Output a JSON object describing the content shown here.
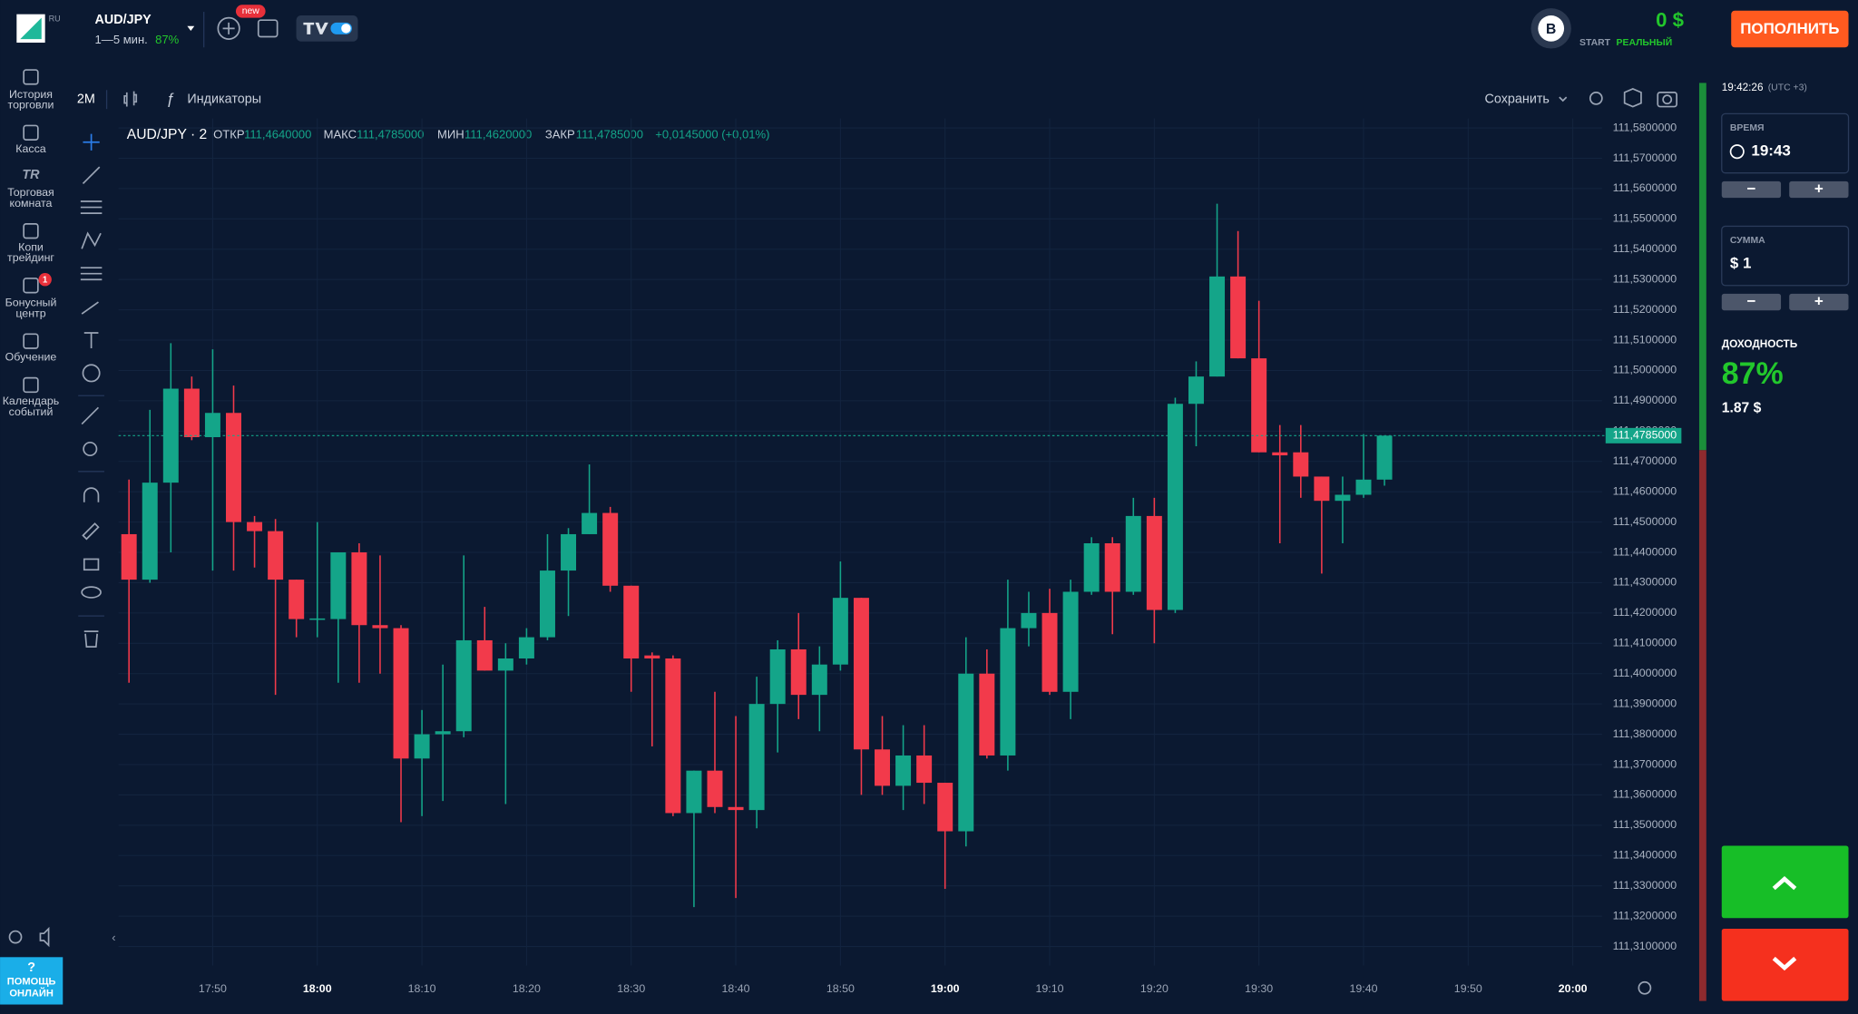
{
  "topbar": {
    "brand": "RU",
    "pair": "AUD/JPY",
    "expiry": "1—5 мин.",
    "payout": "87%",
    "new_badge": "new",
    "avatar": "B",
    "balance": "0 $",
    "account_type": "START",
    "account_mode": "РЕАЛЬНЫЙ",
    "deposit_button": "ПОПОЛНИТЬ"
  },
  "sidebar": [
    {
      "label": [
        "История",
        "торговли"
      ]
    },
    {
      "label": [
        "Касса"
      ]
    },
    {
      "label": [
        "Торговая",
        "комната"
      ],
      "icon": "TR"
    },
    {
      "label": [
        "Копи",
        "трейдинг"
      ]
    },
    {
      "label": [
        "Бонусный",
        "центр"
      ],
      "badge": "1"
    },
    {
      "label": [
        "Обучение"
      ]
    },
    {
      "label": [
        "Календарь",
        "событий"
      ]
    }
  ],
  "help": {
    "icon": "?",
    "label": [
      "ПОМОЩЬ",
      "ОНЛАЙН"
    ]
  },
  "toolbar": {
    "timeframe": "2M",
    "indicators": "Индикаторы",
    "save": "Сохранить"
  },
  "chart_header": {
    "symbol": "AUD/JPY · 2",
    "open_label": "ОТКР",
    "open": "111,4640000",
    "high_label": "МАКС",
    "high": "111,4785000",
    "low_label": "МИН",
    "low": "111,4620000",
    "close_label": "ЗАКР",
    "close": "111,4785000",
    "change": "+0,0145000 (+0,01%)"
  },
  "right_panel": {
    "clock": "19:42:26",
    "timezone": "(UTC +3)",
    "time_label": "ВРЕМЯ",
    "time_value": "19:43",
    "amount_label": "СУММА",
    "amount_value": "$ 1",
    "minus": "−",
    "plus": "+",
    "yield_label": "ДОХОДНОСТЬ",
    "yield_value": "87%",
    "yield_amount": "1.87 $"
  },
  "chart_data": {
    "type": "candlestick",
    "up_color": "#14a589",
    "down_color": "#f23a4b",
    "grid": true,
    "x": [
      1062,
      1064,
      1066,
      1068,
      1070,
      1072,
      1074,
      1076,
      1078,
      1080,
      1082,
      1084,
      1086,
      1088,
      1090,
      1092,
      1094,
      1096,
      1098,
      1100,
      1102,
      1104,
      1106,
      1108,
      1110,
      1112,
      1114,
      1116,
      1118,
      1120,
      1122,
      1124,
      1126,
      1128,
      1130,
      1132,
      1134,
      1136,
      1138,
      1140,
      1142,
      1144,
      1146,
      1148,
      1150,
      1152,
      1154,
      1156,
      1158,
      1160,
      1162,
      1164,
      1166,
      1168,
      1170,
      1172,
      1174,
      1176,
      1178,
      1180,
      1182
    ],
    "open": [
      111.446,
      111.431,
      111.463,
      111.494,
      111.478,
      111.486,
      111.45,
      111.447,
      111.431,
      111.418,
      111.418,
      111.44,
      111.416,
      111.415,
      111.372,
      111.38,
      111.381,
      111.411,
      111.401,
      111.405,
      111.412,
      111.434,
      111.446,
      111.453,
      111.429,
      111.406,
      111.405,
      111.354,
      111.368,
      111.356,
      111.355,
      111.39,
      111.408,
      111.393,
      111.403,
      111.425,
      111.375,
      111.363,
      111.373,
      111.364,
      111.348,
      111.4,
      111.373,
      111.415,
      111.42,
      111.394,
      111.427,
      111.443,
      111.427,
      111.452,
      111.421,
      111.489,
      111.498,
      111.531,
      111.504,
      111.473,
      111.473,
      111.465,
      111.457,
      111.459,
      111.464
    ],
    "high": [
      111.464,
      111.487,
      111.509,
      111.498,
      111.507,
      111.495,
      111.452,
      111.451,
      111.431,
      111.45,
      111.44,
      111.443,
      111.439,
      111.416,
      111.388,
      111.403,
      111.439,
      111.422,
      111.41,
      111.415,
      111.446,
      111.448,
      111.469,
      111.455,
      111.429,
      111.407,
      111.406,
      111.368,
      111.394,
      111.386,
      111.399,
      111.411,
      111.42,
      111.409,
      111.437,
      111.425,
      111.386,
      111.383,
      111.383,
      111.364,
      111.412,
      111.408,
      111.431,
      111.427,
      111.428,
      111.431,
      111.445,
      111.445,
      111.458,
      111.458,
      111.491,
      111.503,
      111.555,
      111.546,
      111.523,
      111.482,
      111.482,
      111.465,
      111.465,
      111.479,
      111.4785
    ],
    "low": [
      111.397,
      111.43,
      111.44,
      111.477,
      111.434,
      111.434,
      111.435,
      111.393,
      111.412,
      111.412,
      111.397,
      111.397,
      111.4,
      111.351,
      111.353,
      111.358,
      111.379,
      111.401,
      111.357,
      111.403,
      111.411,
      111.419,
      111.446,
      111.427,
      111.394,
      111.376,
      111.353,
      111.323,
      111.354,
      111.326,
      111.349,
      111.374,
      111.385,
      111.381,
      111.401,
      111.36,
      111.36,
      111.355,
      111.357,
      111.329,
      111.343,
      111.372,
      111.368,
      111.409,
      111.393,
      111.385,
      111.426,
      111.413,
      111.426,
      111.41,
      111.42,
      111.475,
      111.498,
      111.504,
      111.473,
      111.443,
      111.458,
      111.433,
      111.443,
      111.458,
      111.462
    ],
    "close": [
      111.431,
      111.463,
      111.494,
      111.478,
      111.486,
      111.45,
      111.447,
      111.431,
      111.418,
      111.4182,
      111.44,
      111.416,
      111.415,
      111.372,
      111.38,
      111.381,
      111.411,
      111.401,
      111.405,
      111.412,
      111.434,
      111.446,
      111.453,
      111.429,
      111.405,
      111.405,
      111.354,
      111.368,
      111.356,
      111.355,
      111.39,
      111.408,
      111.393,
      111.403,
      111.425,
      111.375,
      111.363,
      111.373,
      111.364,
      111.348,
      111.4,
      111.373,
      111.415,
      111.42,
      111.394,
      111.427,
      111.443,
      111.427,
      111.452,
      111.421,
      111.489,
      111.498,
      111.531,
      111.504,
      111.473,
      111.472,
      111.465,
      111.457,
      111.459,
      111.464,
      111.4785
    ],
    "current_price": {
      "value": 111.4785,
      "label": "111,4785000"
    },
    "xlim": [
      1061,
      1202
    ],
    "xticks": [
      {
        "value": 1070,
        "label": "17:50"
      },
      {
        "value": 1080,
        "label": "18:00"
      },
      {
        "value": 1090,
        "label": "18:10"
      },
      {
        "value": 1100,
        "label": "18:20"
      },
      {
        "value": 1110,
        "label": "18:30"
      },
      {
        "value": 1120,
        "label": "18:40"
      },
      {
        "value": 1130,
        "label": "18:50"
      },
      {
        "value": 1140,
        "label": "19:00"
      },
      {
        "value": 1150,
        "label": "19:10"
      },
      {
        "value": 1160,
        "label": "19:20"
      },
      {
        "value": 1170,
        "label": "19:30"
      },
      {
        "value": 1180,
        "label": "19:40"
      },
      {
        "value": 1190,
        "label": "19:50"
      },
      {
        "value": 1200,
        "label": "20:00"
      }
    ],
    "ylim": [
      111.31,
      111.58
    ],
    "yticks": [
      {
        "value": 111.58,
        "label": "111,5800000"
      },
      {
        "value": 111.57,
        "label": "111,5700000"
      },
      {
        "value": 111.56,
        "label": "111,5600000"
      },
      {
        "value": 111.55,
        "label": "111,5500000"
      },
      {
        "value": 111.54,
        "label": "111,5400000"
      },
      {
        "value": 111.53,
        "label": "111,5300000"
      },
      {
        "value": 111.52,
        "label": "111,5200000"
      },
      {
        "value": 111.51,
        "label": "111,5100000"
      },
      {
        "value": 111.5,
        "label": "111,5000000"
      },
      {
        "value": 111.49,
        "label": "111,4900000"
      },
      {
        "value": 111.48,
        "label": "111,4800000"
      },
      {
        "value": 111.47,
        "label": "111,4700000"
      },
      {
        "value": 111.46,
        "label": "111,4600000"
      },
      {
        "value": 111.45,
        "label": "111,4500000"
      },
      {
        "value": 111.44,
        "label": "111,4400000"
      },
      {
        "value": 111.43,
        "label": "111,4300000"
      },
      {
        "value": 111.42,
        "label": "111,4200000"
      },
      {
        "value": 111.41,
        "label": "111,4100000"
      },
      {
        "value": 111.4,
        "label": "111,4000000"
      },
      {
        "value": 111.39,
        "label": "111,3900000"
      },
      {
        "value": 111.38,
        "label": "111,3800000"
      },
      {
        "value": 111.37,
        "label": "111,3700000"
      },
      {
        "value": 111.36,
        "label": "111,3600000"
      },
      {
        "value": 111.35,
        "label": "111,3500000"
      },
      {
        "value": 111.34,
        "label": "111,3400000"
      },
      {
        "value": 111.33,
        "label": "111,3300000"
      },
      {
        "value": 111.32,
        "label": "111,3200000"
      },
      {
        "value": 111.31,
        "label": "111,3100000"
      }
    ]
  }
}
